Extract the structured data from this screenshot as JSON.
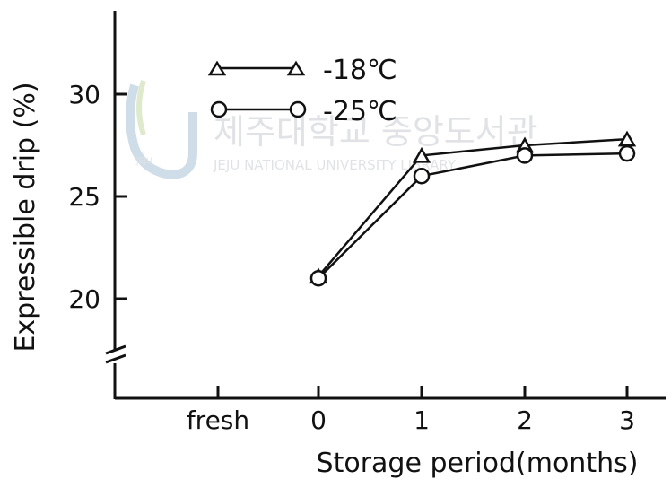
{
  "chart_data": {
    "type": "line",
    "xlabel": "Storage period(months)",
    "ylabel": "Expressible drip (%)",
    "categories": [
      "fresh",
      "0",
      "1",
      "2",
      "3"
    ],
    "ylim": [
      15.5,
      34
    ],
    "yticks": [
      "20",
      "25",
      "30"
    ],
    "axis_break": "y",
    "legend_position": "top-left",
    "series": [
      {
        "name": "-18℃",
        "marker": "triangle",
        "x": [
          "0",
          "1",
          "2",
          "3"
        ],
        "values": [
          21.1,
          27.0,
          27.5,
          27.8
        ]
      },
      {
        "name": "-25℃",
        "marker": "circle",
        "x": [
          "0",
          "1",
          "2",
          "3"
        ],
        "values": [
          21.0,
          26.0,
          27.0,
          27.1
        ]
      }
    ]
  },
  "watermark": {
    "korean": "제주대학교 중앙도서관",
    "english": "JEJU NATIONAL UNIVERSITY LIBRARY",
    "logo_text": "JEJU"
  },
  "colors": {
    "ink": "#111111",
    "watermark": "#c9ccd2"
  }
}
